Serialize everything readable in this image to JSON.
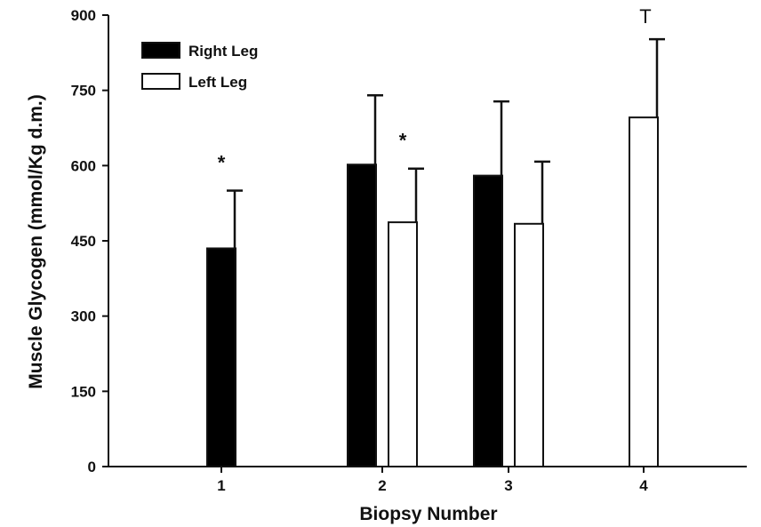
{
  "chart_data": {
    "type": "bar",
    "xlabel": "Biopsy Number",
    "ylabel": "Muscle Glycogen (mmol/Kg d.m.)",
    "categories": [
      "1",
      "2",
      "3",
      "4"
    ],
    "ylim": [
      0,
      900
    ],
    "yticks": [
      "0",
      "150",
      "300",
      "450",
      "600",
      "750",
      "900"
    ],
    "legend_position": "top-left",
    "series": [
      {
        "name": "Right Leg",
        "color": "#000000",
        "fill": "#000000",
        "values": [
          435,
          602,
          580,
          null
        ],
        "errors": [
          115,
          138,
          148,
          null
        ]
      },
      {
        "name": "Left Leg",
        "color": "#000000",
        "fill": "#ffffff",
        "values": [
          null,
          487,
          484,
          696
        ],
        "errors": [
          null,
          107,
          124,
          156
        ]
      }
    ],
    "annotations": [
      {
        "category": "1",
        "series": "Right Leg",
        "text": "*"
      },
      {
        "category": "2",
        "series": "Left Leg",
        "text": "*"
      },
      {
        "category": "4",
        "series": "Left Leg",
        "text": "T"
      }
    ]
  }
}
